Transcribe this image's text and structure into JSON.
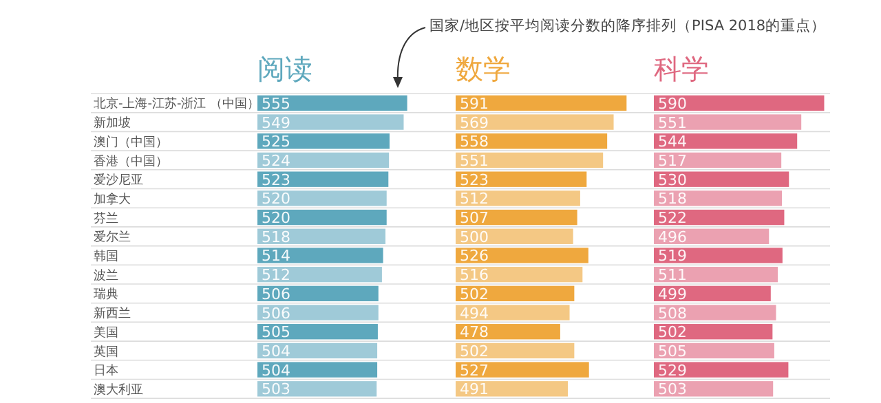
{
  "chart_data": [
    {
      "type": "bar",
      "orientation": "horizontal",
      "title": "阅读",
      "annotations": [
        "国家/地区按平均阅读分数的降序排列（PISA 2018的重点）"
      ],
      "grid": "y",
      "data_labels": true,
      "xlim": [
        300,
        600
      ],
      "categories": [
        "北京-上海-江苏-浙江 （中国）",
        "新加坡",
        "澳门（中国）",
        "香港（中国）",
        "爱沙尼亚",
        "加拿大",
        "芬兰",
        "爱尔兰",
        "韩国",
        "波兰",
        "瑞典",
        "新西兰",
        "美国",
        "英国",
        "日本",
        "澳大利亚"
      ],
      "values": [
        555,
        549,
        525,
        524,
        523,
        520,
        520,
        518,
        514,
        512,
        506,
        506,
        505,
        504,
        504,
        503
      ],
      "colors": [
        "#5ea8bd",
        "#9fcad8",
        "#5ea8bd",
        "#9fcad8",
        "#5ea8bd",
        "#9fcad8",
        "#5ea8bd",
        "#9fcad8",
        "#5ea8bd",
        "#9fcad8",
        "#5ea8bd",
        "#9fcad8",
        "#5ea8bd",
        "#9fcad8",
        "#5ea8bd",
        "#9fcad8"
      ]
    },
    {
      "type": "bar",
      "orientation": "horizontal",
      "title": "数学",
      "grid": "y",
      "data_labels": true,
      "xlim": [
        300,
        600
      ],
      "tick_labels": false,
      "categories": [
        "北京-上海-江苏-浙江 （中国）",
        "新加坡",
        "澳门（中国）",
        "香港（中国）",
        "爱沙尼亚",
        "加拿大",
        "芬兰",
        "爱尔兰",
        "韩国",
        "波兰",
        "瑞典",
        "新西兰",
        "美国",
        "英国",
        "日本",
        "澳大利亚"
      ],
      "values": [
        591,
        569,
        558,
        551,
        523,
        512,
        507,
        500,
        526,
        516,
        502,
        494,
        478,
        502,
        527,
        491
      ],
      "colors": [
        "#efa83e",
        "#f4c884",
        "#efa83e",
        "#f4c884",
        "#efa83e",
        "#f4c884",
        "#efa83e",
        "#f4c884",
        "#efa83e",
        "#f4c884",
        "#efa83e",
        "#f4c884",
        "#efa83e",
        "#f4c884",
        "#efa83e",
        "#f4c884"
      ]
    },
    {
      "type": "bar",
      "orientation": "horizontal",
      "title": "科学",
      "grid": "y",
      "data_labels": true,
      "xlim": [
        300,
        600
      ],
      "tick_labels": false,
      "categories": [
        "北京-上海-江苏-浙江 （中国）",
        "新加坡",
        "澳门（中国）",
        "香港（中国）",
        "爱沙尼亚",
        "加拿大",
        "芬兰",
        "爱尔兰",
        "韩国",
        "波兰",
        "瑞典",
        "新西兰",
        "美国",
        "英国",
        "日本",
        "澳大利亚"
      ],
      "values": [
        590,
        551,
        544,
        517,
        530,
        518,
        522,
        496,
        519,
        511,
        499,
        508,
        502,
        505,
        529,
        503
      ],
      "colors": [
        "#df6880",
        "#eba1b1",
        "#df6880",
        "#eba1b1",
        "#df6880",
        "#eba1b1",
        "#df6880",
        "#eba1b1",
        "#df6880",
        "#eba1b1",
        "#df6880",
        "#eba1b1",
        "#df6880",
        "#eba1b1",
        "#df6880",
        "#eba1b1"
      ]
    }
  ]
}
